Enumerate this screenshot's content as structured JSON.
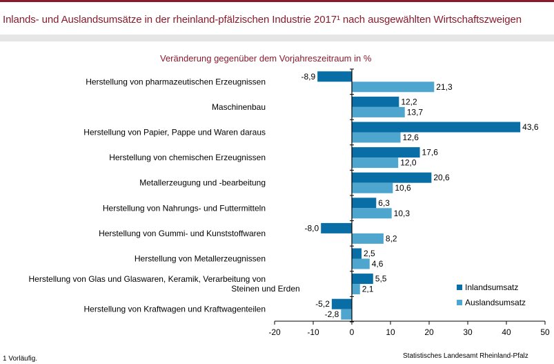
{
  "header": {
    "title": "Inlands- und Auslandsumsätze in der rheinland-pfälzischen Industrie 2017¹ nach ausgewählten Wirtschaftszweigen",
    "subtitle": "Veränderung gegenüber dem Vorjahreszeitraum in %"
  },
  "footer": {
    "footnote": "1 Vorläufig.",
    "source": "Statistisches Landesamt Rheinland-Pfalz"
  },
  "chart_data": {
    "type": "bar",
    "orientation": "horizontal",
    "categories": [
      [
        "Herstellung von pharmazeutischen Erzeugnissen"
      ],
      [
        "Maschinenbau"
      ],
      [
        "Herstellung von Papier, Pappe und Waren daraus"
      ],
      [
        "Herstellung von chemischen Erzeugnissen"
      ],
      [
        "Metallerzeugung und -bearbeitung"
      ],
      [
        "Herstellung von Nahrungs- und Futtermitteln"
      ],
      [
        "Herstellung von Gummi- und Kunststoffwaren"
      ],
      [
        "Herstellung von Metallerzeugnissen"
      ],
      [
        "Herstellung von Glas und Glaswaren, Keramik, Verarbeitung von",
        "Steinen und Erden"
      ],
      [
        "Herstellung von Kraftwagen und Kraftwagenteilen"
      ]
    ],
    "series": [
      {
        "name": "Inlandsumsatz",
        "color": "#0a6ea6",
        "values": [
          -8.9,
          12.2,
          43.6,
          17.6,
          20.6,
          6.3,
          -8.0,
          2.5,
          5.5,
          -5.2
        ],
        "labels": [
          "-8,9",
          "12,2",
          "43,6",
          "17,6",
          "20,6",
          "6,3",
          "-8,0",
          "2,5",
          "5,5",
          "-5,2"
        ]
      },
      {
        "name": "Auslandsumsatz",
        "color": "#4ea5cd",
        "values": [
          21.3,
          13.7,
          12.6,
          12.0,
          10.6,
          10.3,
          8.2,
          4.6,
          2.1,
          -2.8
        ],
        "labels": [
          "21,3",
          "13,7",
          "12,6",
          "12,0",
          "10,6",
          "10,3",
          "8,2",
          "4,6",
          "2,1",
          "-2,8"
        ]
      }
    ],
    "xlim": [
      -20,
      50
    ],
    "xticks": [
      -20,
      -10,
      0,
      10,
      20,
      30,
      40,
      50
    ],
    "legend_position": "bottom-right",
    "grid": false
  }
}
